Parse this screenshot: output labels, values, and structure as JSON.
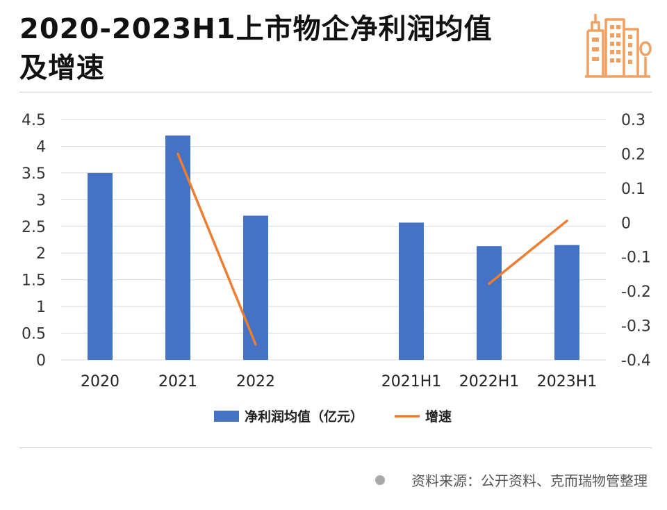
{
  "header": {
    "title_line1": "2020-2023H1上市物企净利润均值",
    "title_line2": "及增速",
    "logo_icon": "buildings-logo-icon"
  },
  "colors": {
    "bar": "#4472c4",
    "line": "#ed7d31",
    "accent": "#f0a060",
    "grid": "#d9d9d9"
  },
  "chart_data": {
    "type": "bar+line",
    "title": "2020-2023H1上市物企净利润均值及增速",
    "categories": [
      "2020",
      "2021",
      "2022",
      "",
      "2021H1",
      "2022H1",
      "2023H1"
    ],
    "series": [
      {
        "name": "净利润均值（亿元）",
        "type": "bar",
        "axis": "left",
        "values": [
          3.5,
          4.2,
          2.7,
          null,
          2.57,
          2.13,
          2.15
        ]
      },
      {
        "name": "增速",
        "type": "line",
        "axis": "right",
        "segments": [
          {
            "points": [
              [
                "2021",
                0.2
              ],
              [
                "2022",
                -0.355
              ]
            ]
          },
          {
            "points": [
              [
                "2022H1",
                -0.178
              ],
              [
                "2023H1",
                0.005
              ]
            ]
          }
        ]
      }
    ],
    "left_axis": {
      "min": 0,
      "max": 4.5,
      "ticks": [
        "0",
        "0.5",
        "1",
        "1.5",
        "2",
        "2.5",
        "3",
        "3.5",
        "4",
        "4.5"
      ]
    },
    "right_axis": {
      "min": -0.4,
      "max": 0.3,
      "ticks": [
        "-0.4",
        "-0.3",
        "-0.2",
        "-0.1",
        "0",
        "0.1",
        "0.2",
        "0.3"
      ]
    },
    "legend": {
      "position": "bottom",
      "items": [
        "净利润均值（亿元）",
        "增速"
      ]
    },
    "grid": true
  },
  "footer": {
    "source": "资料来源：公开资料、克而瑞物管整理"
  }
}
